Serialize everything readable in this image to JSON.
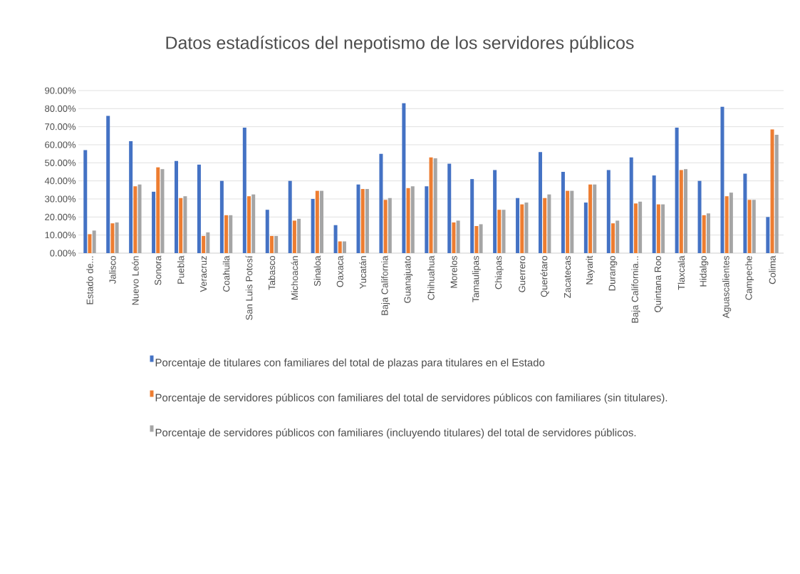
{
  "chart_data": {
    "type": "bar",
    "title": "Datos estadísticos del nepotismo de los servidores públicos",
    "categories": [
      "Estado de...",
      "Jalisco",
      "Nuevo León",
      "Sonora",
      "Puebla",
      "Veracruz",
      "Coahuila",
      "San Luis Potosí",
      "Tabasco",
      "Michoacán",
      "Sinaloa",
      "Oaxaca",
      "Yucatán",
      "Baja California",
      "Guanajuato",
      "Chihuahua",
      "Morelos",
      "Tamaulipas",
      "Chiapas",
      "Guerrero",
      "Querétaro",
      "Zacatecas",
      "Nayarit",
      "Durango",
      "Baja California...",
      "Quintana Roo",
      "Tlaxcala",
      "Hidalgo",
      "Aguascalientes",
      "Campeche",
      "Colima"
    ],
    "series": [
      {
        "name": "Porcentaje de titulares con familiares del total de plazas para titulares en el Estado",
        "color": "#4472c4",
        "values": [
          57,
          76,
          62,
          34,
          51,
          49,
          40,
          69.5,
          24,
          40,
          30,
          15.5,
          38,
          55,
          83,
          37,
          49.5,
          41,
          46,
          30.5,
          56,
          45,
          28,
          46,
          53,
          43,
          69.5,
          40,
          81,
          44,
          20
        ]
      },
      {
        "name": "Porcentaje de servidores públicos con familiares del total de servidores públicos con familiares (sin titulares).",
        "color": "#ed7d31",
        "values": [
          10.5,
          16.5,
          37,
          47.5,
          30.5,
          9.5,
          21,
          31.5,
          9.5,
          18,
          34.5,
          6.5,
          35.5,
          29.5,
          36,
          53,
          17,
          15,
          24,
          27,
          30.5,
          34.5,
          38,
          16.5,
          27.5,
          27,
          46,
          21,
          31.5,
          29.5,
          68.5
        ]
      },
      {
        "name": "Porcentaje de servidores públicos con familiares (incluyendo titulares) del total de servidores públicos.",
        "color": "#a5a5a5",
        "values": [
          12.5,
          17,
          38,
          46.5,
          31.5,
          11.5,
          21,
          32.5,
          9.5,
          19,
          34.5,
          6.5,
          35.5,
          30.5,
          37,
          52.5,
          18,
          16,
          24,
          28,
          32.5,
          34.5,
          38,
          18,
          28.5,
          27,
          46.5,
          22,
          33.5,
          29.5,
          65.5
        ]
      }
    ],
    "ylim": [
      0,
      90
    ],
    "yticks": [
      {
        "value": 0,
        "label": "0.00%"
      },
      {
        "value": 10,
        "label": "10.00%"
      },
      {
        "value": 20,
        "label": "20.00%"
      },
      {
        "value": 30,
        "label": "30.00%"
      },
      {
        "value": 40,
        "label": "40.00%"
      },
      {
        "value": 50,
        "label": "50.00%"
      },
      {
        "value": 60,
        "label": "60.00%"
      },
      {
        "value": 70,
        "label": "70.00%"
      },
      {
        "value": 80,
        "label": "80.00%"
      },
      {
        "value": 90,
        "label": "90.00%"
      }
    ],
    "grid": "y",
    "legend": "bottom"
  }
}
